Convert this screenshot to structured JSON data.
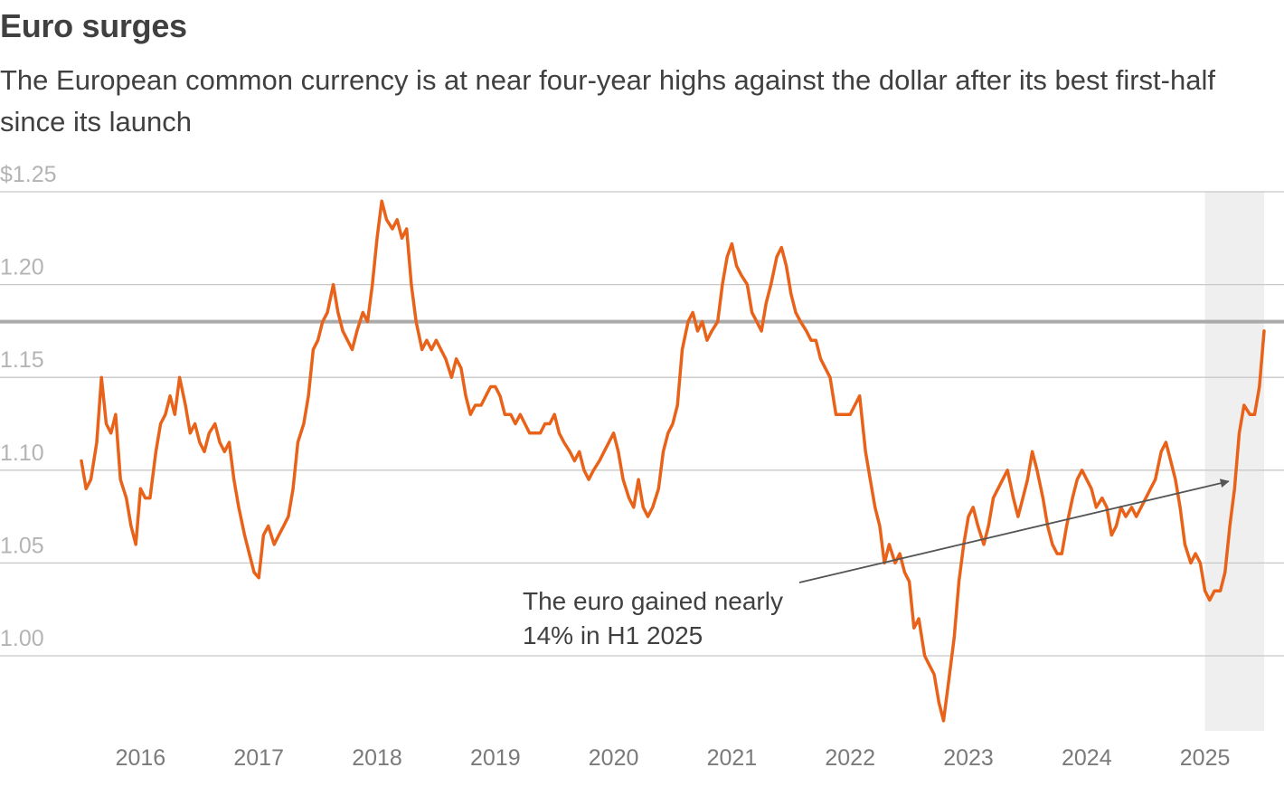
{
  "title": "Euro surges",
  "subtitle": "The European common currency is at near four-year highs against the dollar after its best first-half since its launch",
  "colors": {
    "line": "#e8621a",
    "grid": "#c8c8c8",
    "reference": "#aaaaaa",
    "highlight": "#efefef",
    "text": "#404040"
  },
  "chart_data": {
    "type": "line",
    "title": "Euro surges",
    "subtitle": "The European common currency is at near four-year highs against the dollar after its best first-half since its launch",
    "xlabel": "",
    "ylabel": "",
    "y_ticks": [
      1.0,
      1.05,
      1.1,
      1.15,
      1.2,
      1.25
    ],
    "y_tick_labels": [
      "1.00",
      "1.05",
      "1.10",
      "1.15",
      "1.20",
      "$1.25"
    ],
    "x_ticks": [
      2016,
      2017,
      2018,
      2019,
      2020,
      2021,
      2022,
      2023,
      2024,
      2025
    ],
    "x_tick_labels": [
      "2016",
      "2017",
      "2018",
      "2019",
      "2020",
      "2021",
      "2022",
      "2023",
      "2024",
      "2025"
    ],
    "xlim": [
      2015.5,
      2025.5
    ],
    "ylim": [
      0.955,
      1.255
    ],
    "grid": true,
    "reference_line": 1.18,
    "highlight_range": [
      2025.0,
      2025.5
    ],
    "annotation": {
      "lines": [
        "The euro gained nearly",
        "14% in H1 2025"
      ],
      "arrow_from": [
        2022.33,
        1.05
      ],
      "arrow_to": [
        2025.2,
        1.094
      ]
    },
    "series": [
      {
        "x": [
          2015.5,
          2015.54,
          2015.58,
          2015.63,
          2015.67,
          2015.71,
          2015.75,
          2015.79,
          2015.83,
          2015.88,
          2015.92,
          2015.96,
          2016.0,
          2016.04,
          2016.08,
          2016.13,
          2016.17,
          2016.21,
          2016.25,
          2016.29,
          2016.33,
          2016.38,
          2016.42,
          2016.46,
          2016.5,
          2016.54,
          2016.58,
          2016.63,
          2016.67,
          2016.71,
          2016.75,
          2016.79,
          2016.83,
          2016.88,
          2016.92,
          2016.96,
          2017.0,
          2017.04,
          2017.08,
          2017.13,
          2017.17,
          2017.21,
          2017.25,
          2017.29,
          2017.33,
          2017.38,
          2017.42,
          2017.46,
          2017.5,
          2017.54,
          2017.58,
          2017.63,
          2017.67,
          2017.71,
          2017.75,
          2017.79,
          2017.83,
          2017.88,
          2017.92,
          2017.96,
          2018.0,
          2018.04,
          2018.08,
          2018.13,
          2018.17,
          2018.21,
          2018.25,
          2018.29,
          2018.33,
          2018.38,
          2018.42,
          2018.46,
          2018.5,
          2018.54,
          2018.58,
          2018.63,
          2018.67,
          2018.71,
          2018.75,
          2018.79,
          2018.83,
          2018.88,
          2018.92,
          2018.96,
          2019.0,
          2019.04,
          2019.08,
          2019.13,
          2019.17,
          2019.21,
          2019.25,
          2019.29,
          2019.33,
          2019.38,
          2019.42,
          2019.46,
          2019.5,
          2019.54,
          2019.58,
          2019.63,
          2019.67,
          2019.71,
          2019.75,
          2019.79,
          2019.83,
          2019.88,
          2019.92,
          2019.96,
          2020.0,
          2020.04,
          2020.08,
          2020.13,
          2020.17,
          2020.21,
          2020.25,
          2020.29,
          2020.33,
          2020.38,
          2020.42,
          2020.46,
          2020.5,
          2020.54,
          2020.58,
          2020.63,
          2020.67,
          2020.71,
          2020.75,
          2020.79,
          2020.83,
          2020.88,
          2020.92,
          2020.96,
          2021.0,
          2021.04,
          2021.08,
          2021.13,
          2021.17,
          2021.21,
          2021.25,
          2021.29,
          2021.33,
          2021.38,
          2021.42,
          2021.46,
          2021.5,
          2021.54,
          2021.58,
          2021.63,
          2021.67,
          2021.71,
          2021.75,
          2021.79,
          2021.83,
          2021.88,
          2021.92,
          2021.96,
          2022.0,
          2022.04,
          2022.08,
          2022.13,
          2022.17,
          2022.21,
          2022.25,
          2022.29,
          2022.33,
          2022.38,
          2022.42,
          2022.46,
          2022.5,
          2022.54,
          2022.58,
          2022.63,
          2022.67,
          2022.71,
          2022.75,
          2022.79,
          2022.83,
          2022.88,
          2022.92,
          2022.96,
          2023.0,
          2023.04,
          2023.08,
          2023.13,
          2023.17,
          2023.21,
          2023.25,
          2023.29,
          2023.33,
          2023.38,
          2023.42,
          2023.46,
          2023.5,
          2023.54,
          2023.58,
          2023.63,
          2023.67,
          2023.71,
          2023.75,
          2023.79,
          2023.83,
          2023.88,
          2023.92,
          2023.96,
          2024.0,
          2024.04,
          2024.08,
          2024.13,
          2024.17,
          2024.21,
          2024.25,
          2024.29,
          2024.33,
          2024.38,
          2024.42,
          2024.46,
          2024.5,
          2024.54,
          2024.58,
          2024.63,
          2024.67,
          2024.71,
          2024.75,
          2024.79,
          2024.83,
          2024.88,
          2024.92,
          2024.96,
          2025.0,
          2025.04,
          2025.08,
          2025.13,
          2025.17,
          2025.21,
          2025.25,
          2025.29,
          2025.33,
          2025.38,
          2025.42,
          2025.46,
          2025.5
        ],
        "y": [
          1.105,
          1.09,
          1.095,
          1.115,
          1.15,
          1.125,
          1.12,
          1.13,
          1.095,
          1.085,
          1.07,
          1.06,
          1.09,
          1.085,
          1.085,
          1.11,
          1.125,
          1.13,
          1.14,
          1.13,
          1.15,
          1.135,
          1.12,
          1.125,
          1.115,
          1.11,
          1.12,
          1.125,
          1.115,
          1.11,
          1.115,
          1.095,
          1.08,
          1.065,
          1.055,
          1.045,
          1.042,
          1.065,
          1.07,
          1.06,
          1.065,
          1.07,
          1.075,
          1.09,
          1.115,
          1.125,
          1.14,
          1.165,
          1.17,
          1.18,
          1.185,
          1.2,
          1.185,
          1.175,
          1.17,
          1.165,
          1.175,
          1.185,
          1.18,
          1.2,
          1.225,
          1.245,
          1.235,
          1.23,
          1.235,
          1.225,
          1.23,
          1.2,
          1.18,
          1.165,
          1.17,
          1.165,
          1.17,
          1.165,
          1.16,
          1.15,
          1.16,
          1.155,
          1.14,
          1.13,
          1.135,
          1.135,
          1.14,
          1.145,
          1.145,
          1.14,
          1.13,
          1.13,
          1.125,
          1.13,
          1.125,
          1.12,
          1.12,
          1.12,
          1.125,
          1.125,
          1.13,
          1.12,
          1.115,
          1.11,
          1.105,
          1.11,
          1.1,
          1.095,
          1.1,
          1.105,
          1.11,
          1.115,
          1.12,
          1.11,
          1.095,
          1.085,
          1.08,
          1.095,
          1.08,
          1.075,
          1.08,
          1.09,
          1.11,
          1.12,
          1.125,
          1.135,
          1.165,
          1.18,
          1.185,
          1.175,
          1.18,
          1.17,
          1.175,
          1.18,
          1.2,
          1.215,
          1.222,
          1.21,
          1.205,
          1.2,
          1.185,
          1.18,
          1.175,
          1.19,
          1.2,
          1.215,
          1.22,
          1.21,
          1.195,
          1.185,
          1.18,
          1.175,
          1.17,
          1.17,
          1.16,
          1.155,
          1.15,
          1.13,
          1.13,
          1.13,
          1.13,
          1.135,
          1.14,
          1.11,
          1.095,
          1.08,
          1.07,
          1.05,
          1.06,
          1.05,
          1.055,
          1.045,
          1.04,
          1.015,
          1.02,
          1.0,
          0.995,
          0.99,
          0.975,
          0.965,
          0.985,
          1.01,
          1.04,
          1.06,
          1.075,
          1.08,
          1.07,
          1.06,
          1.07,
          1.085,
          1.09,
          1.095,
          1.1,
          1.085,
          1.075,
          1.085,
          1.095,
          1.11,
          1.1,
          1.085,
          1.07,
          1.06,
          1.055,
          1.055,
          1.07,
          1.085,
          1.095,
          1.1,
          1.095,
          1.09,
          1.08,
          1.085,
          1.08,
          1.065,
          1.07,
          1.08,
          1.075,
          1.08,
          1.075,
          1.08,
          1.085,
          1.09,
          1.095,
          1.11,
          1.115,
          1.105,
          1.095,
          1.08,
          1.06,
          1.05,
          1.055,
          1.05,
          1.035,
          1.03,
          1.035,
          1.035,
          1.045,
          1.07,
          1.09,
          1.12,
          1.135,
          1.13,
          1.13,
          1.145,
          1.175
        ]
      }
    ]
  }
}
